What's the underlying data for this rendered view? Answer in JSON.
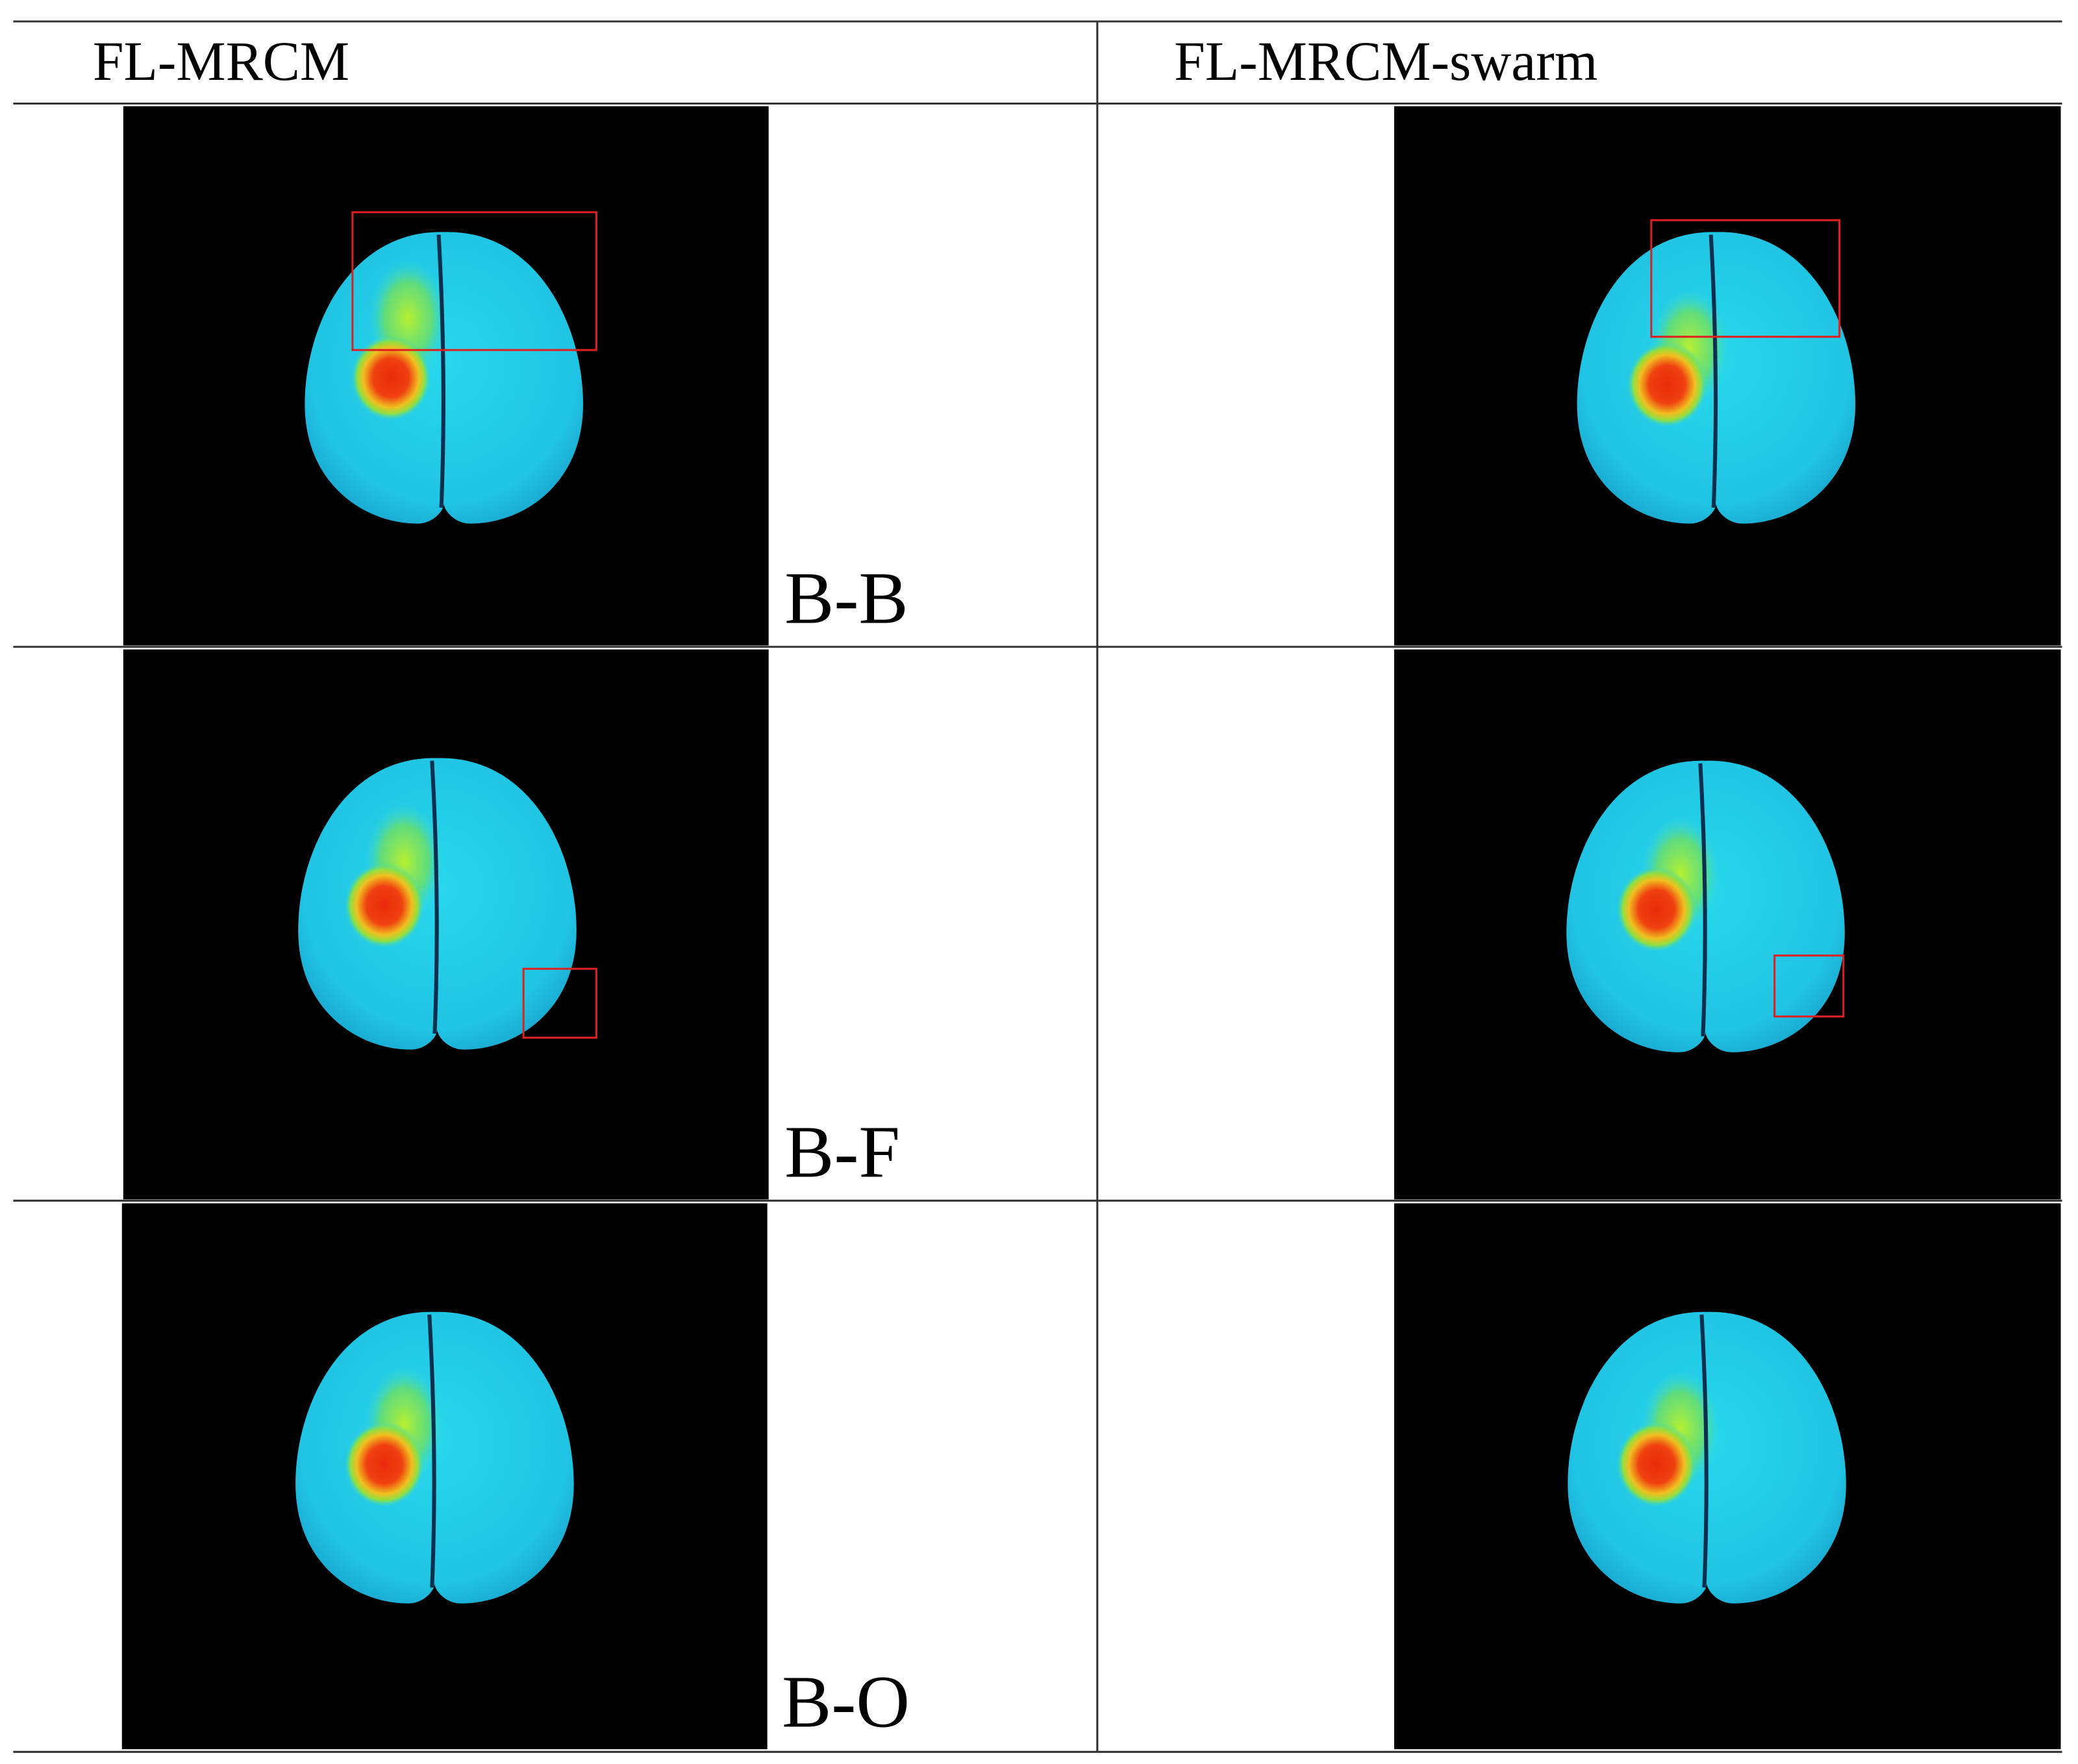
{
  "header": {
    "columns": [
      "FL-MRCM",
      "FL-MRCM-swarm"
    ]
  },
  "rows": [
    {
      "label": "B-B"
    },
    {
      "label": "B-F"
    },
    {
      "label": "B-O"
    }
  ]
}
